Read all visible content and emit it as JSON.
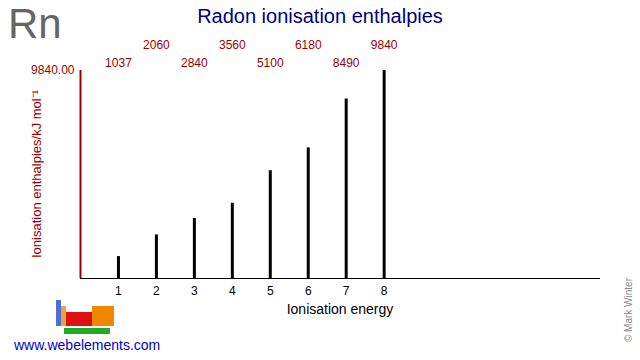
{
  "chart_data": {
    "type": "bar",
    "symbol": "Rn",
    "title": "Radon ionisation enthalpies",
    "x_label": "Ionisation energy",
    "y_label": "Ionisation enthalpies/kJ mol⁻¹",
    "x": [
      1,
      2,
      3,
      4,
      5,
      6,
      7,
      8
    ],
    "values": [
      1037,
      2060,
      2840,
      3560,
      5100,
      6180,
      8490,
      9840
    ],
    "xlim": [
      0,
      13.7
    ],
    "xticks": [
      1,
      2,
      3,
      4,
      5,
      6,
      7,
      8
    ],
    "ylim": [
      0,
      9840
    ],
    "yticks": [
      {
        "value": 9840,
        "label": "9840.00"
      }
    ],
    "color": "#000000",
    "data_labels": true,
    "source": "www.webelements.com",
    "credit": "© Mark Winter"
  }
}
